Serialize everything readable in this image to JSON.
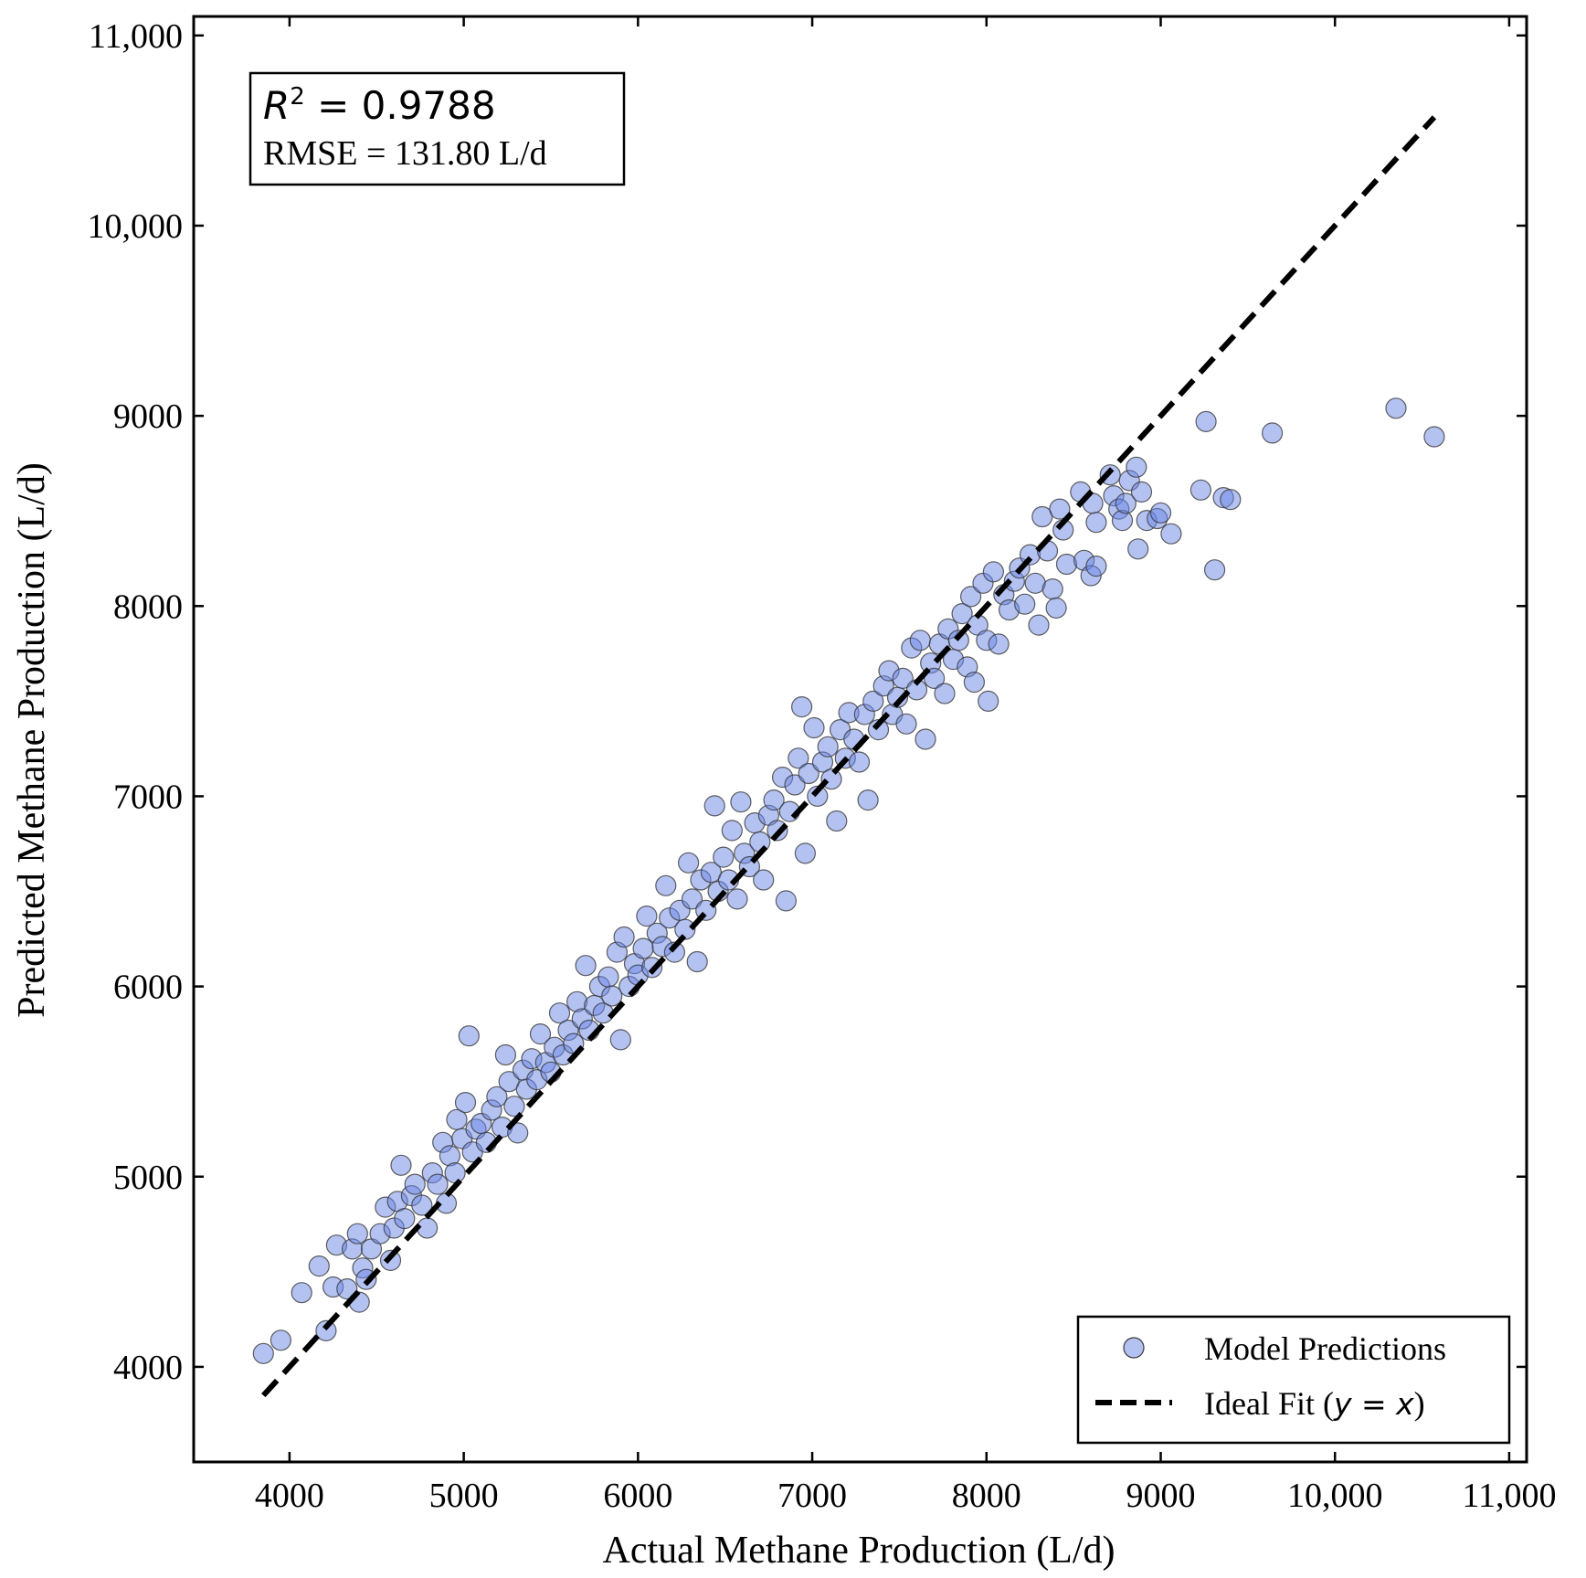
{
  "chart_data": {
    "type": "scatter",
    "xlabel": "Actual Methane Production (L/d)",
    "ylabel": "Predicted Methane Production (L/d)",
    "xlim": [
      3450,
      11100
    ],
    "ylim": [
      3500,
      11100
    ],
    "xticks": [
      4000,
      5000,
      6000,
      7000,
      8000,
      9000,
      10000,
      11000
    ],
    "xtick_labels": [
      "4000",
      "5000",
      "6000",
      "7000",
      "8000",
      "9000",
      "10,000",
      "11,000"
    ],
    "yticks": [
      4000,
      5000,
      6000,
      7000,
      8000,
      9000,
      10000,
      11000
    ],
    "ytick_labels": [
      "4000",
      "5000",
      "6000",
      "7000",
      "8000",
      "9000",
      "10,000",
      "11,000"
    ],
    "grid": false,
    "legend_position": "bottom-right",
    "stats": {
      "r2_label": "R",
      "r2_sup": "2",
      "r2_value": " = 0.9788",
      "rmse": "RMSE = 131.80 L/d"
    },
    "series": [
      {
        "name": "Model Predictions",
        "kind": "scatter",
        "color": "#6a86e6",
        "edge_color": "#3a3a3a",
        "points": [
          [
            3850,
            4070
          ],
          [
            3950,
            4140
          ],
          [
            4070,
            4390
          ],
          [
            4170,
            4530
          ],
          [
            4210,
            4190
          ],
          [
            4250,
            4420
          ],
          [
            4270,
            4640
          ],
          [
            4330,
            4410
          ],
          [
            4360,
            4620
          ],
          [
            4390,
            4700
          ],
          [
            4400,
            4340
          ],
          [
            4420,
            4520
          ],
          [
            4440,
            4460
          ],
          [
            4470,
            4620
          ],
          [
            4520,
            4700
          ],
          [
            4550,
            4840
          ],
          [
            4580,
            4560
          ],
          [
            4600,
            4730
          ],
          [
            4620,
            4870
          ],
          [
            4640,
            5060
          ],
          [
            4660,
            4780
          ],
          [
            4700,
            4900
          ],
          [
            4720,
            4960
          ],
          [
            4760,
            4850
          ],
          [
            4790,
            4730
          ],
          [
            4820,
            5020
          ],
          [
            4850,
            4960
          ],
          [
            4880,
            5180
          ],
          [
            4900,
            4860
          ],
          [
            4920,
            5110
          ],
          [
            4950,
            5020
          ],
          [
            4960,
            5300
          ],
          [
            4990,
            5200
          ],
          [
            5010,
            5390
          ],
          [
            5030,
            5740
          ],
          [
            5050,
            5130
          ],
          [
            5070,
            5250
          ],
          [
            5100,
            5280
          ],
          [
            5130,
            5180
          ],
          [
            5160,
            5350
          ],
          [
            5190,
            5420
          ],
          [
            5220,
            5260
          ],
          [
            5240,
            5640
          ],
          [
            5260,
            5500
          ],
          [
            5290,
            5370
          ],
          [
            5310,
            5230
          ],
          [
            5340,
            5560
          ],
          [
            5360,
            5460
          ],
          [
            5390,
            5620
          ],
          [
            5420,
            5510
          ],
          [
            5440,
            5750
          ],
          [
            5470,
            5600
          ],
          [
            5500,
            5550
          ],
          [
            5520,
            5680
          ],
          [
            5550,
            5860
          ],
          [
            5570,
            5640
          ],
          [
            5600,
            5770
          ],
          [
            5630,
            5700
          ],
          [
            5650,
            5920
          ],
          [
            5680,
            5830
          ],
          [
            5700,
            6110
          ],
          [
            5720,
            5770
          ],
          [
            5750,
            5900
          ],
          [
            5780,
            6000
          ],
          [
            5800,
            5860
          ],
          [
            5830,
            6050
          ],
          [
            5850,
            5950
          ],
          [
            5880,
            6180
          ],
          [
            5900,
            5720
          ],
          [
            5920,
            6260
          ],
          [
            5950,
            6000
          ],
          [
            5980,
            6120
          ],
          [
            6000,
            6060
          ],
          [
            6030,
            6200
          ],
          [
            6050,
            6370
          ],
          [
            6080,
            6100
          ],
          [
            6110,
            6280
          ],
          [
            6140,
            6210
          ],
          [
            6160,
            6530
          ],
          [
            6180,
            6360
          ],
          [
            6210,
            6180
          ],
          [
            6240,
            6400
          ],
          [
            6270,
            6300
          ],
          [
            6290,
            6650
          ],
          [
            6310,
            6460
          ],
          [
            6340,
            6130
          ],
          [
            6360,
            6560
          ],
          [
            6390,
            6400
          ],
          [
            6420,
            6600
          ],
          [
            6440,
            6950
          ],
          [
            6460,
            6500
          ],
          [
            6490,
            6680
          ],
          [
            6520,
            6560
          ],
          [
            6540,
            6820
          ],
          [
            6570,
            6460
          ],
          [
            6590,
            6970
          ],
          [
            6610,
            6700
          ],
          [
            6640,
            6630
          ],
          [
            6670,
            6860
          ],
          [
            6700,
            6760
          ],
          [
            6720,
            6560
          ],
          [
            6750,
            6900
          ],
          [
            6780,
            6980
          ],
          [
            6800,
            6820
          ],
          [
            6830,
            7100
          ],
          [
            6850,
            6450
          ],
          [
            6870,
            6920
          ],
          [
            6900,
            7060
          ],
          [
            6920,
            7200
          ],
          [
            6940,
            7470
          ],
          [
            6960,
            6700
          ],
          [
            6980,
            7120
          ],
          [
            7010,
            7360
          ],
          [
            7030,
            7000
          ],
          [
            7060,
            7180
          ],
          [
            7090,
            7260
          ],
          [
            7110,
            7090
          ],
          [
            7140,
            6870
          ],
          [
            7160,
            7350
          ],
          [
            7190,
            7200
          ],
          [
            7210,
            7440
          ],
          [
            7240,
            7300
          ],
          [
            7270,
            7180
          ],
          [
            7300,
            7430
          ],
          [
            7320,
            6980
          ],
          [
            7350,
            7500
          ],
          [
            7380,
            7350
          ],
          [
            7410,
            7580
          ],
          [
            7440,
            7660
          ],
          [
            7460,
            7430
          ],
          [
            7490,
            7520
          ],
          [
            7520,
            7620
          ],
          [
            7540,
            7380
          ],
          [
            7570,
            7780
          ],
          [
            7600,
            7560
          ],
          [
            7620,
            7820
          ],
          [
            7650,
            7300
          ],
          [
            7680,
            7700
          ],
          [
            7700,
            7620
          ],
          [
            7730,
            7800
          ],
          [
            7760,
            7540
          ],
          [
            7780,
            7880
          ],
          [
            7810,
            7720
          ],
          [
            7840,
            7820
          ],
          [
            7860,
            7960
          ],
          [
            7890,
            7680
          ],
          [
            7910,
            8050
          ],
          [
            7930,
            7600
          ],
          [
            7950,
            7900
          ],
          [
            7980,
            8120
          ],
          [
            8000,
            7820
          ],
          [
            8010,
            7500
          ],
          [
            8040,
            8180
          ],
          [
            8070,
            7800
          ],
          [
            8100,
            8060
          ],
          [
            8130,
            7980
          ],
          [
            8160,
            8130
          ],
          [
            8190,
            8200
          ],
          [
            8220,
            8010
          ],
          [
            8250,
            8270
          ],
          [
            8280,
            8120
          ],
          [
            8300,
            7900
          ],
          [
            8320,
            8470
          ],
          [
            8350,
            8290
          ],
          [
            8380,
            8090
          ],
          [
            8400,
            7990
          ],
          [
            8420,
            8510
          ],
          [
            8440,
            8400
          ],
          [
            8460,
            8220
          ],
          [
            8540,
            8600
          ],
          [
            8560,
            8240
          ],
          [
            8600,
            8160
          ],
          [
            8610,
            8540
          ],
          [
            8630,
            8210
          ],
          [
            8630,
            8440
          ],
          [
            8710,
            8690
          ],
          [
            8730,
            8580
          ],
          [
            8760,
            8510
          ],
          [
            8780,
            8450
          ],
          [
            8800,
            8540
          ],
          [
            8820,
            8660
          ],
          [
            8860,
            8730
          ],
          [
            8870,
            8300
          ],
          [
            8890,
            8600
          ],
          [
            8920,
            8450
          ],
          [
            8980,
            8460
          ],
          [
            9000,
            8490
          ],
          [
            9060,
            8380
          ],
          [
            9230,
            8610
          ],
          [
            9260,
            8970
          ],
          [
            9310,
            8190
          ],
          [
            9360,
            8570
          ],
          [
            9400,
            8560
          ],
          [
            9640,
            8910
          ],
          [
            10350,
            9040
          ],
          [
            10570,
            8890
          ]
        ]
      },
      {
        "name": "Ideal Fit (y = x)",
        "kind": "line",
        "style": "dashed",
        "color": "#000000",
        "x": [
          3850,
          10570
        ],
        "y": [
          3850,
          10570
        ]
      }
    ]
  },
  "legend": {
    "scatter_label": "Model Predictions",
    "line_label_prefix": "Ideal Fit (",
    "line_label_math": "y = x",
    "line_label_suffix": ")"
  }
}
